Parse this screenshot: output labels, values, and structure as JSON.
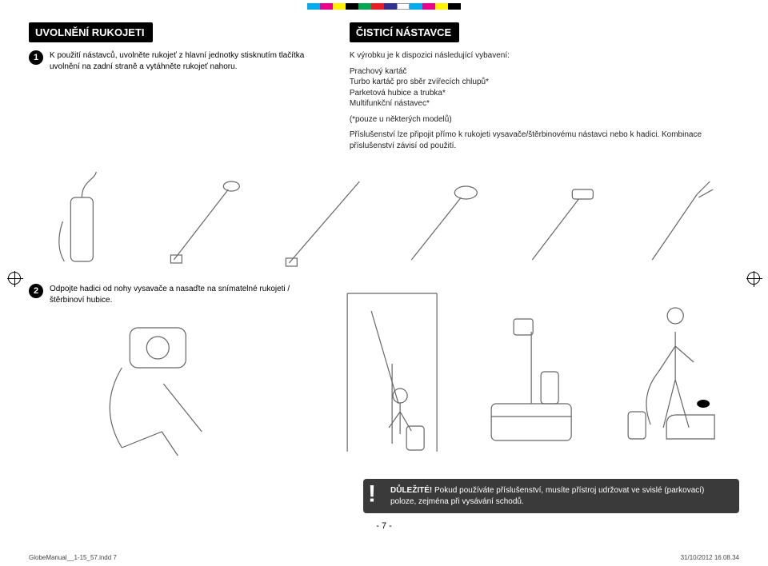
{
  "swatches": [
    "#00aeef",
    "#ec008c",
    "#fff200",
    "#000000",
    "#00a651",
    "#ed1c24",
    "#2e3192",
    "#ffffff",
    "#00aeef",
    "#ec008c",
    "#fff200",
    "#000000"
  ],
  "left": {
    "heading": "UVOLNĚNÍ RUKOJETI",
    "step1_num": "1",
    "step1_text": "K použití nástavců, uvolněte rukojeť z hlavní jednotky stisknutím tlačítka uvolnění na zadní straně a vytáhněte rukojeť nahoru."
  },
  "right": {
    "heading": "ČISTICÍ NÁSTAVCE",
    "intro": "K výrobku je k dispozici následující vybavení:",
    "items": [
      "Prachový kartáč",
      "Turbo kartáč pro sběr zvířecích chlupů*",
      "Parketová hubice a trubka*",
      "Multifunkční nástavec*"
    ],
    "note": "(*pouze u některých modelů)",
    "para": "Příslušenství lze připojit přímo k rukojeti vysavače/štěrbinovému nástavci nebo k hadici. Kombinace příslušenství závisí od použití."
  },
  "step2": {
    "num": "2",
    "text": "Odpojte hadici od nohy vysavače a nasaďte na snímatelné rukojeti / štěrbinoví hubice."
  },
  "important": {
    "label": "DŮLEŽITÉ!",
    "text": "Pokud používáte příslušenství, musíte přístroj udržovat ve svislé (parkovací) poloze, zejména při vysávání schodů."
  },
  "page_number": "- 7 -",
  "footer_left": "GlobeManual__1-15_57.indd   7",
  "footer_right": "31/10/2012   16.08.34"
}
